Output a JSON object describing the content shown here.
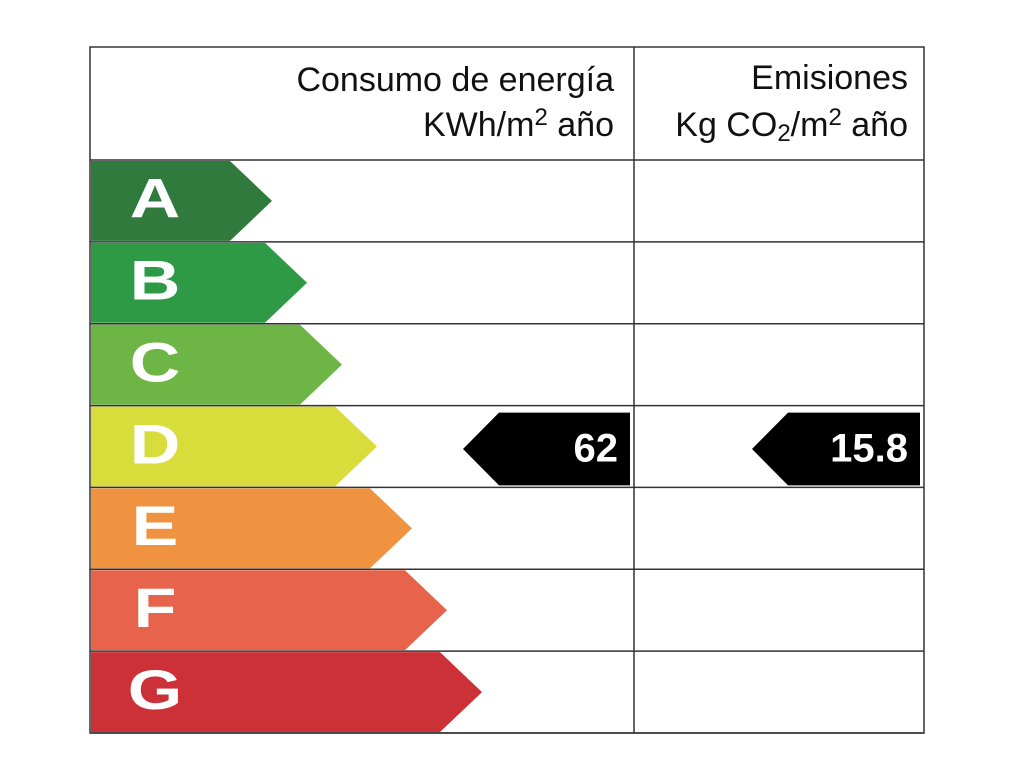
{
  "header": {
    "consumption": {
      "title": "Consumo de energía",
      "unit": [
        {
          "text": "KWh/m"
        },
        {
          "text": "2",
          "sup": true
        },
        {
          "text": " año"
        }
      ]
    },
    "emissions": {
      "title": "Emisiones",
      "unit": [
        {
          "text": "Kg CO"
        },
        {
          "text": "2",
          "sub": true
        },
        {
          "text": "/m"
        },
        {
          "text": "2",
          "sup": true
        },
        {
          "text": " año"
        }
      ]
    }
  },
  "rows": [
    {
      "letter": "A",
      "color": "#2f7a3c"
    },
    {
      "letter": "B",
      "color": "#2e9a46"
    },
    {
      "letter": "C",
      "color": "#6db544"
    },
    {
      "letter": "D",
      "color": "#d8dd3b",
      "consumption": 62,
      "emissions": 15.8
    },
    {
      "letter": "E",
      "color": "#ef9340"
    },
    {
      "letter": "F",
      "color": "#e8634c"
    },
    {
      "letter": "G",
      "color": "#cb3137"
    }
  ]
}
